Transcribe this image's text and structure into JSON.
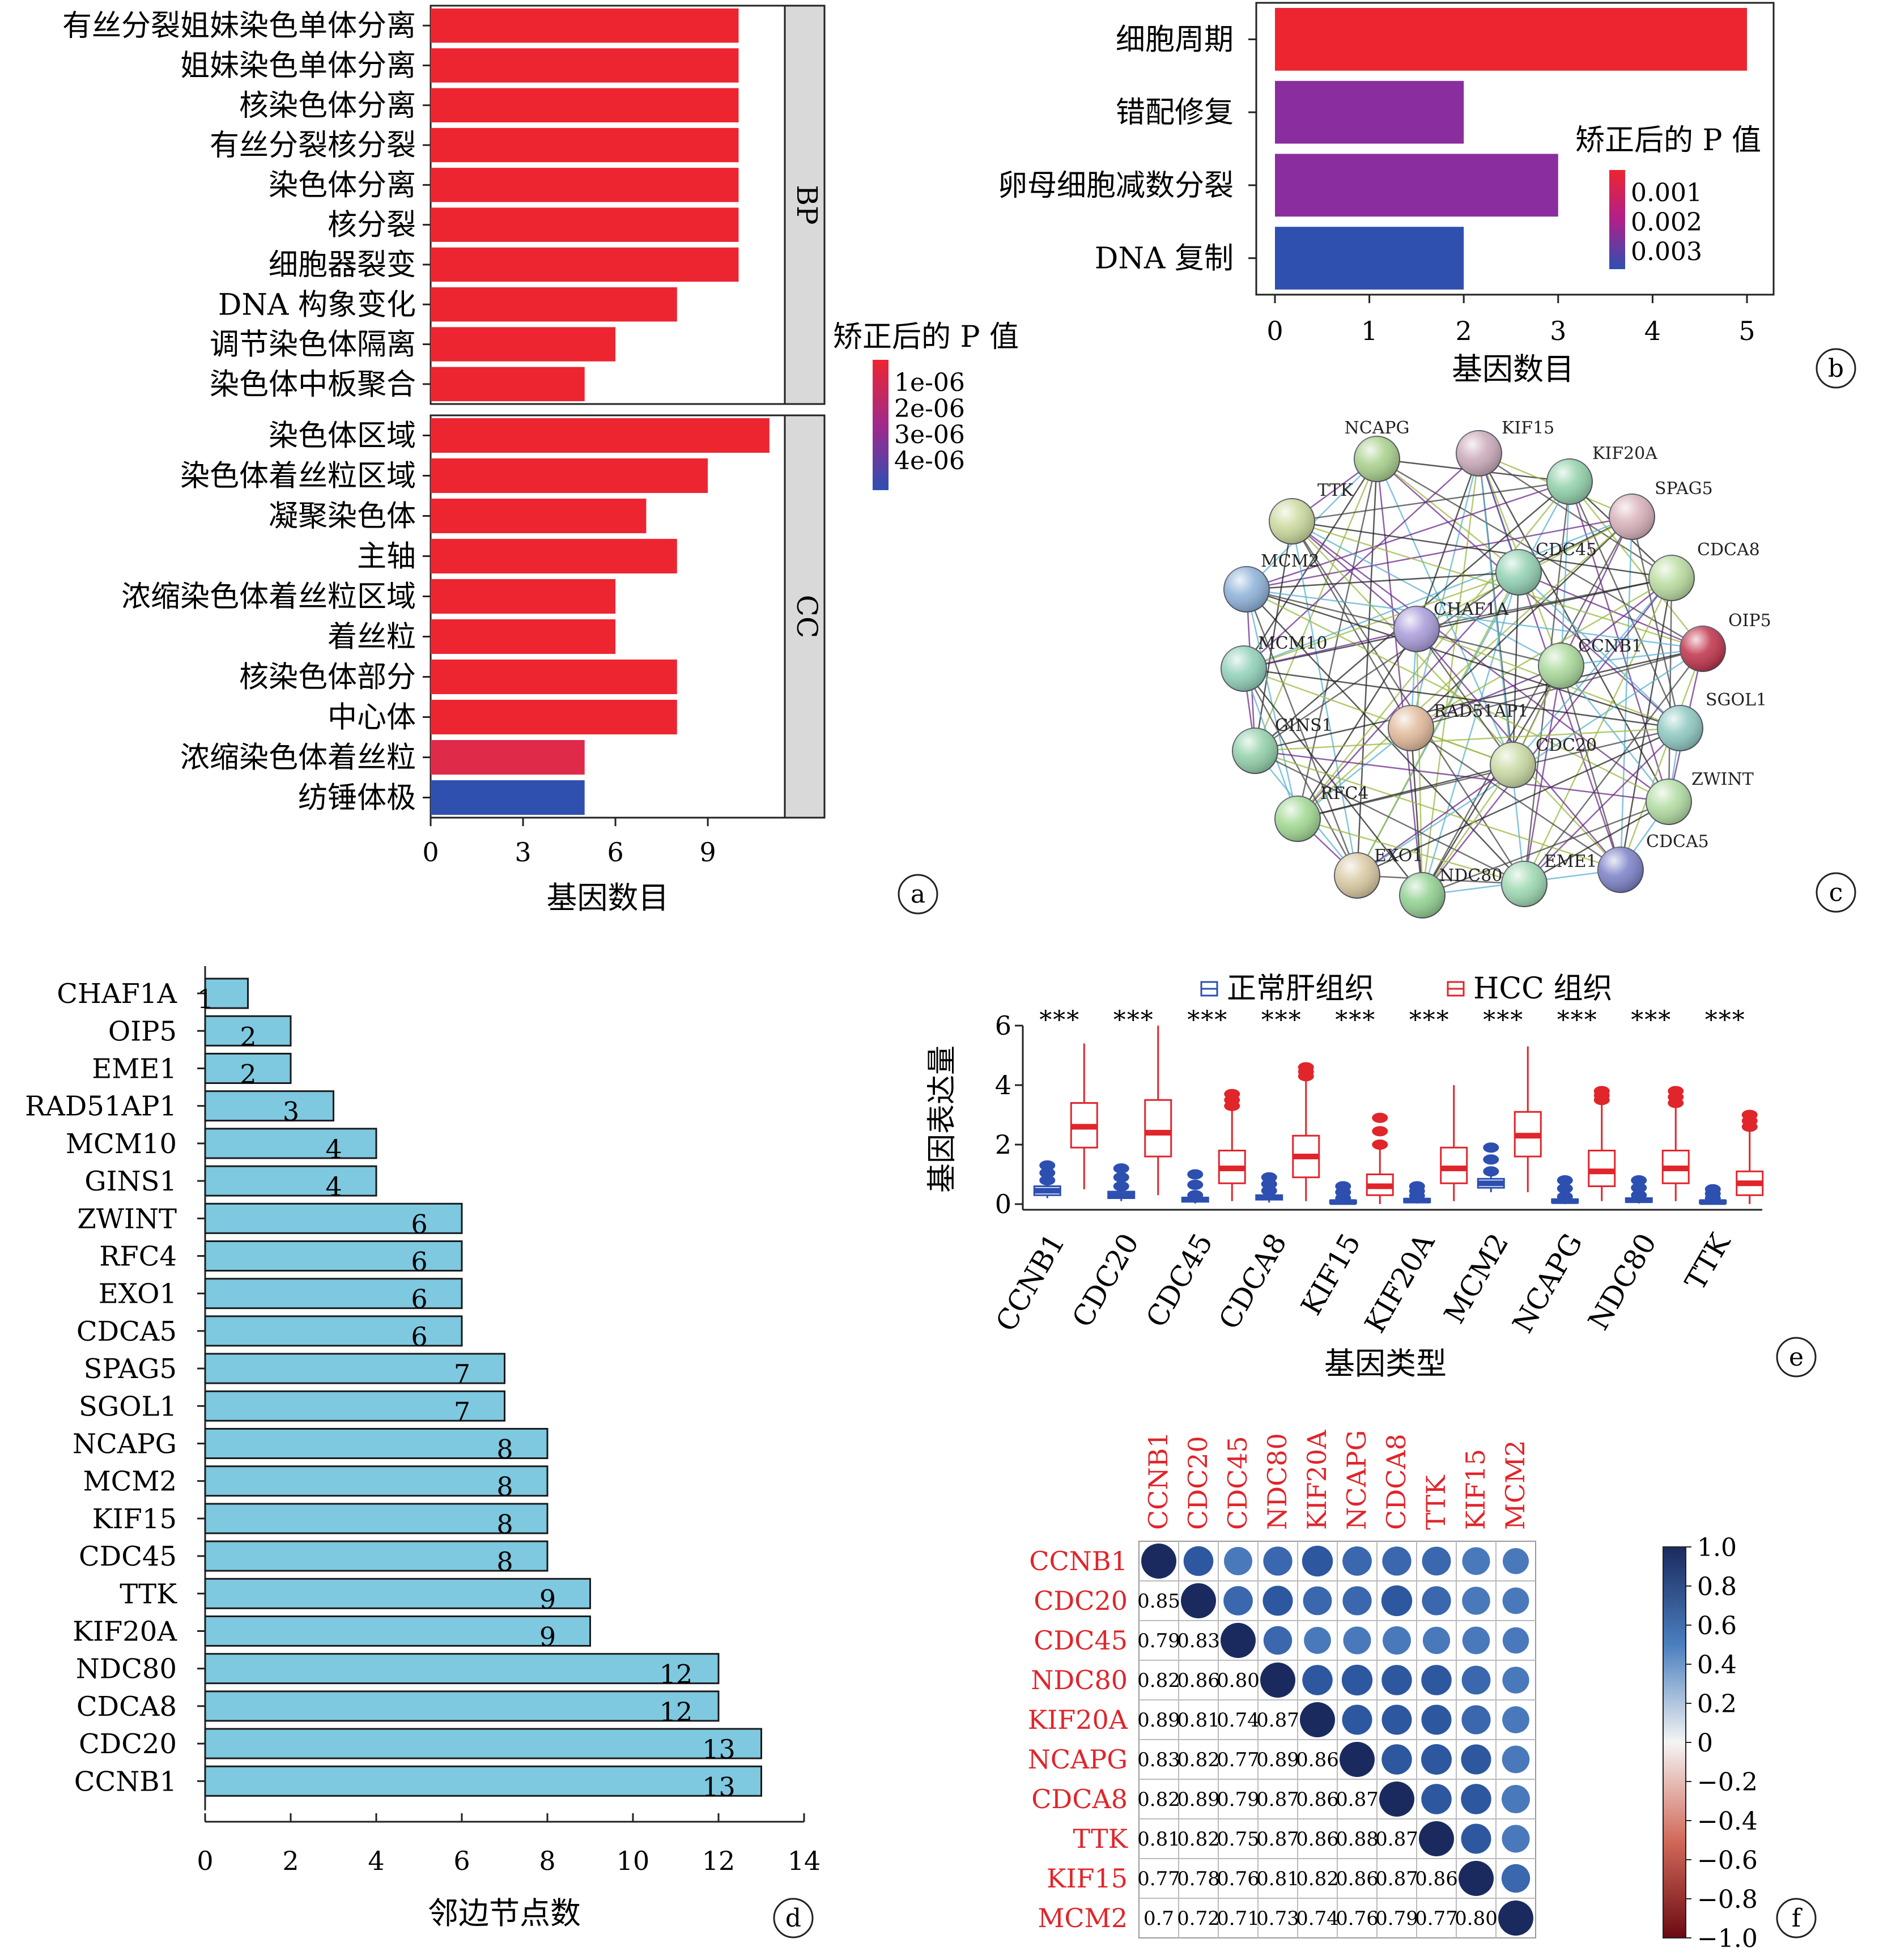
{
  "panels": {
    "a": {
      "label": "a",
      "chart_data": {
        "type": "bar",
        "orientation": "horizontal",
        "xlabel": "基因数目",
        "xlim": [
          0,
          11.5
        ],
        "xticks": [
          0,
          3,
          6,
          9
        ],
        "legend_title": "矫正后的 P 值",
        "legend_ticks": [
          "1e-06",
          "2e-06",
          "3e-06",
          "4e-06"
        ],
        "facets": [
          {
            "name": "BP",
            "categories": [
              "有丝分裂姐妹染色单体分离",
              "姐妹染色单体分离",
              "核染色体分离",
              "有丝分裂核分裂",
              "染色体分离",
              "核分裂",
              "细胞器裂变",
              "DNA 构象变化",
              "调节染色体隔离",
              "染色体中板聚合"
            ],
            "values": [
              10,
              10,
              10,
              10,
              10,
              10,
              10,
              8,
              6,
              5
            ],
            "colors": [
              "#ed2530",
              "#ed2530",
              "#ed2530",
              "#ed2530",
              "#ed2530",
              "#ed2530",
              "#ed2530",
              "#ed2530",
              "#ed2530",
              "#ed2530"
            ]
          },
          {
            "name": "CC",
            "categories": [
              "染色体区域",
              "染色体着丝粒区域",
              "凝聚染色体",
              "主轴",
              "浓缩染色体着丝粒区域",
              "着丝粒",
              "核染色体部分",
              "中心体",
              "浓缩染色体着丝粒",
              "纺锤体极"
            ],
            "values": [
              11,
              9,
              7,
              8,
              6,
              6,
              8,
              8,
              5,
              5
            ],
            "colors": [
              "#ed2530",
              "#ed2530",
              "#ed2530",
              "#ed2530",
              "#ed2530",
              "#ed2530",
              "#ed2530",
              "#ed2530",
              "#e02a4a",
              "#3050b0"
            ]
          }
        ]
      }
    },
    "b": {
      "label": "b",
      "chart_data": {
        "type": "bar",
        "orientation": "horizontal",
        "xlabel": "基因数目",
        "xlim": [
          0,
          5.25
        ],
        "xticks": [
          0,
          1,
          2,
          3,
          4,
          5
        ],
        "legend_title": "矫正后的 P 值",
        "legend_ticks": [
          "0.001",
          "0.002",
          "0.003"
        ],
        "categories": [
          "细胞周期",
          "错配修复",
          "卵母细胞减数分裂",
          "DNA 复制"
        ],
        "values": [
          5,
          2,
          3,
          2
        ],
        "colors": [
          "#ed2530",
          "#8a2d9e",
          "#8a2d9e",
          "#3050b0"
        ]
      }
    },
    "c": {
      "label": "c",
      "network": {
        "nodes": [
          "NCAPG",
          "KIF15",
          "KIF20A",
          "SPAG5",
          "TTK",
          "CDC45",
          "CDCA8",
          "MCM2",
          "CHAF1A",
          "OIP5",
          "MCM10",
          "CCNB1",
          "SGOL1",
          "RAD51AP1",
          "GINS1",
          "CDC20",
          "ZWINT",
          "RFC4",
          "CDCA5",
          "EXO1",
          "NDC80",
          "EME1"
        ]
      }
    },
    "d": {
      "label": "d",
      "chart_data": {
        "type": "bar",
        "orientation": "horizontal",
        "xlabel": "邻边节点数",
        "xlim": [
          0,
          14
        ],
        "xticks": [
          0,
          2,
          4,
          6,
          8,
          10,
          12,
          14
        ],
        "categories": [
          "CHAF1A",
          "OIP5",
          "EME1",
          "RAD51AP1",
          "MCM10",
          "GINS1",
          "ZWINT",
          "RFC4",
          "EXO1",
          "CDCA5",
          "SPAG5",
          "SGOL1",
          "NCAPG",
          "MCM2",
          "KIF15",
          "CDC45",
          "TTK",
          "KIF20A",
          "NDC80",
          "CDCA8",
          "CDC20",
          "CCNB1"
        ],
        "values": [
          1,
          2,
          2,
          3,
          4,
          4,
          6,
          6,
          6,
          6,
          7,
          7,
          8,
          8,
          8,
          8,
          9,
          9,
          12,
          12,
          13,
          13
        ]
      }
    },
    "e": {
      "label": "e",
      "chart_data": {
        "type": "box",
        "xlabel": "基因类型",
        "ylabel": "基因表达量",
        "yticks": [
          0,
          2,
          4,
          6
        ],
        "legend": [
          "正常肝组织",
          "HCC 组织"
        ],
        "significance": "***",
        "categories": [
          "CCNB1",
          "CDC20",
          "CDC45",
          "CDCA8",
          "KIF15",
          "KIF20A",
          "MCM2",
          "NCAPG",
          "NDC80",
          "TTK"
        ],
        "series": [
          {
            "name": "正常肝组织",
            "color": "#2c4fb0",
            "boxes": [
              [
                0.2,
                0.3,
                0.45,
                0.6,
                0.8
              ],
              [
                0.1,
                0.2,
                0.3,
                0.42,
                0.6
              ],
              [
                0.02,
                0.08,
                0.15,
                0.22,
                0.3
              ],
              [
                0.05,
                0.15,
                0.22,
                0.3,
                0.45
              ],
              [
                0.0,
                0.03,
                0.07,
                0.12,
                0.2
              ],
              [
                0.02,
                0.06,
                0.12,
                0.18,
                0.28
              ],
              [
                0.4,
                0.55,
                0.7,
                0.85,
                1.1
              ],
              [
                0.0,
                0.05,
                0.1,
                0.16,
                0.25
              ],
              [
                0.02,
                0.07,
                0.13,
                0.2,
                0.3
              ],
              [
                0.0,
                0.03,
                0.07,
                0.12,
                0.2
              ]
            ],
            "outlier_max": [
              1.3,
              1.2,
              1.0,
              0.9,
              0.6,
              0.6,
              1.9,
              0.8,
              0.8,
              0.5
            ]
          },
          {
            "name": "HCC 组织",
            "color": "#e0252b",
            "boxes": [
              [
                0.5,
                1.9,
                2.6,
                3.4,
                5.4
              ],
              [
                0.3,
                1.6,
                2.4,
                3.5,
                6.0
              ],
              [
                0.1,
                0.7,
                1.2,
                1.8,
                3.3
              ],
              [
                0.1,
                0.9,
                1.6,
                2.3,
                4.3
              ],
              [
                0.0,
                0.3,
                0.6,
                1.0,
                2.0
              ],
              [
                0.1,
                0.7,
                1.2,
                1.9,
                4.0
              ],
              [
                0.4,
                1.6,
                2.3,
                3.1,
                5.3
              ],
              [
                0.1,
                0.6,
                1.1,
                1.8,
                3.5
              ],
              [
                0.1,
                0.7,
                1.2,
                1.8,
                3.4
              ],
              [
                0.0,
                0.3,
                0.7,
                1.1,
                2.6
              ]
            ],
            "outlier_max": [
              0,
              0,
              3.7,
              4.6,
              2.9,
              3.7,
              0,
              3.8,
              3.8,
              3.0
            ]
          }
        ]
      }
    },
    "f": {
      "label": "f",
      "chart_data": {
        "type": "heatmap",
        "variant": "correlation",
        "genes": [
          "CCNB1",
          "CDC20",
          "CDC45",
          "NDC80",
          "KIF20A",
          "NCAPG",
          "CDCA8",
          "TTK",
          "KIF15",
          "MCM2"
        ],
        "colorbar_ticks": [
          "1.0",
          "0.8",
          "0.6",
          "0.4",
          "0.2",
          "0",
          "−0.2",
          "−0.4",
          "−0.6",
          "−0.8",
          "−1.0"
        ],
        "matrix": [
          [
            1,
            0.85,
            0.79,
            0.82,
            0.89,
            0.83,
            0.82,
            0.81,
            0.77,
            0.7
          ],
          [
            0.85,
            1,
            0.83,
            0.86,
            0.81,
            0.82,
            0.89,
            0.82,
            0.78,
            0.72
          ],
          [
            0.79,
            0.83,
            1,
            0.8,
            0.74,
            0.77,
            0.79,
            0.75,
            0.76,
            0.71
          ],
          [
            0.82,
            0.86,
            0.8,
            1,
            0.87,
            0.89,
            0.87,
            0.87,
            0.81,
            0.73
          ],
          [
            0.89,
            0.81,
            0.74,
            0.87,
            1,
            0.86,
            0.86,
            0.86,
            0.82,
            0.74
          ],
          [
            0.83,
            0.82,
            0.77,
            0.89,
            0.86,
            1,
            0.87,
            0.88,
            0.86,
            0.76
          ],
          [
            0.82,
            0.89,
            0.79,
            0.87,
            0.86,
            0.87,
            1,
            0.87,
            0.87,
            0.79
          ],
          [
            0.81,
            0.82,
            0.75,
            0.87,
            0.86,
            0.88,
            0.87,
            1,
            0.86,
            0.77
          ],
          [
            0.77,
            0.78,
            0.76,
            0.81,
            0.82,
            0.86,
            0.87,
            0.86,
            1,
            0.8
          ],
          [
            0.7,
            0.72,
            0.71,
            0.73,
            0.74,
            0.76,
            0.79,
            0.77,
            0.8,
            1
          ]
        ],
        "lower_labels": [
          [],
          [
            "0.85"
          ],
          [
            "0.79",
            "0.83"
          ],
          [
            "0.82",
            "0.86",
            "0.80"
          ],
          [
            "0.89",
            "0.81",
            "0.74",
            "0.87"
          ],
          [
            "0.83",
            "0.82",
            "0.77",
            "0.89",
            "0.86"
          ],
          [
            "0.82",
            "0.89",
            "0.79",
            "0.87",
            "0.86",
            "0.87"
          ],
          [
            "0.81",
            "0.82",
            "0.75",
            "0.87",
            "0.86",
            "0.88",
            "0.87"
          ],
          [
            "0.77",
            "0.78",
            "0.76",
            "0.81",
            "0.82",
            "0.86",
            "0.87",
            "0.86"
          ],
          [
            "0.7",
            "0.72",
            "0.71",
            "0.73",
            "0.74",
            "0.76",
            "0.79",
            "0.77",
            "0.80"
          ]
        ]
      }
    }
  }
}
